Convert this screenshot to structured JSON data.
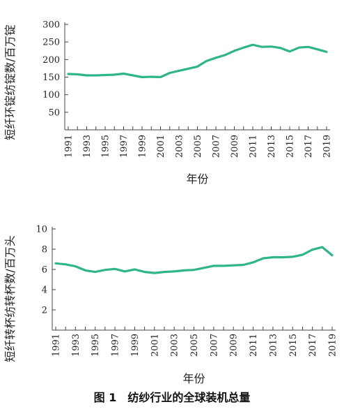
{
  "caption": "图 1　纺纱行业的全球装机总量",
  "colors": {
    "series": "#2fb58c",
    "axis": "#444444",
    "text": "#222222"
  },
  "chart_data": [
    {
      "type": "line",
      "xlabel": "年份",
      "ylabel": "短纤环锭纺锭数/百万锭",
      "ylim": [
        0,
        300
      ],
      "yticks": [
        50,
        100,
        150,
        200,
        250,
        300
      ],
      "xtick_labels": [
        "1991",
        "1993",
        "1995",
        "1997",
        "1999",
        "2001",
        "2003",
        "2005",
        "2007",
        "2009",
        "2011",
        "2013",
        "2015",
        "2017",
        "2019"
      ],
      "grid": false,
      "series": [
        {
          "x": [
            1991,
            1992,
            1993,
            1994,
            1995,
            1996,
            1997,
            1998,
            1999,
            2000,
            2001,
            2002,
            2003,
            2004,
            2005,
            2006,
            2007,
            2008,
            2009,
            2010,
            2011,
            2012,
            2013,
            2014,
            2015,
            2016,
            2017,
            2018,
            2019
          ],
          "values": [
            159,
            158,
            155,
            155,
            156,
            157,
            160,
            155,
            150,
            151,
            150,
            162,
            168,
            174,
            180,
            196,
            205,
            213,
            225,
            234,
            242,
            236,
            237,
            233,
            223,
            234,
            236,
            229,
            222
          ]
        }
      ]
    },
    {
      "type": "line",
      "xlabel": "年份",
      "ylabel": "短纤转杯纺转杯数/百万头",
      "ylim": [
        0,
        10
      ],
      "yticks": [
        2,
        4,
        6,
        8,
        10
      ],
      "xtick_labels": [
        "1991",
        "1993",
        "1995",
        "1997",
        "1999",
        "2001",
        "2003",
        "2005",
        "2007",
        "2009",
        "2011",
        "2013",
        "2015",
        "2017",
        "2019"
      ],
      "grid": false,
      "series": [
        {
          "x": [
            1991,
            1992,
            1993,
            1994,
            1995,
            1996,
            1997,
            1998,
            1999,
            2000,
            2001,
            2002,
            2003,
            2004,
            2005,
            2006,
            2007,
            2008,
            2009,
            2010,
            2011,
            2012,
            2013,
            2014,
            2015,
            2016,
            2017,
            2018,
            2019
          ],
          "values": [
            6.6,
            6.5,
            6.3,
            5.9,
            5.75,
            5.95,
            6.05,
            5.8,
            6.0,
            5.75,
            5.65,
            5.75,
            5.8,
            5.9,
            5.95,
            6.15,
            6.35,
            6.35,
            6.4,
            6.45,
            6.7,
            7.1,
            7.2,
            7.2,
            7.25,
            7.45,
            7.95,
            8.2,
            7.4
          ]
        }
      ]
    }
  ]
}
